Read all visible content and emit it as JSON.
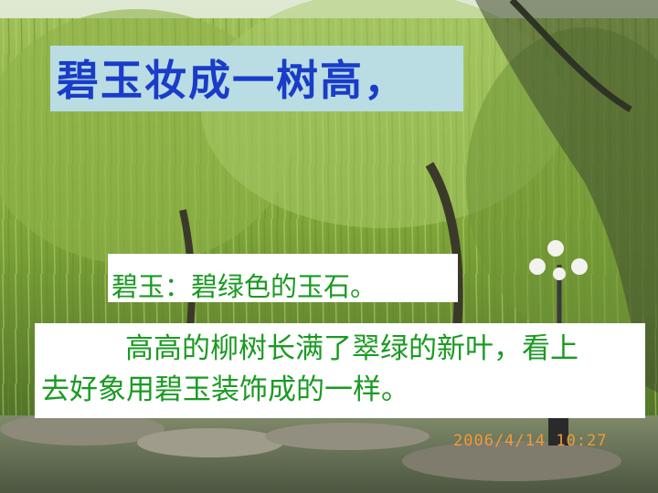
{
  "slide": {
    "title": "碧玉妆成一树高，",
    "note": "碧玉：碧绿色的玉石。",
    "description": "高高的柳树长满了翠绿的新叶，看上去好象用碧玉装饰成的一样。",
    "photo_timestamp": "2006/4/14  10:27"
  },
  "colors": {
    "title_text": "#1a3cc8",
    "title_box": "#b9dde3",
    "body_text": "#1a9a22",
    "text_box": "#ffffff",
    "timestamp": "#f09a3c"
  }
}
